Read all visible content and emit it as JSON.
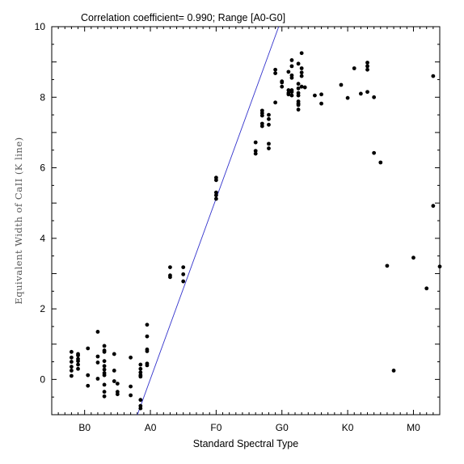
{
  "chart_data": {
    "type": "scatter",
    "title": "Correlation coefficient= 0.990; Range [A0-G0]",
    "xlabel": "Standard Spectral Type",
    "ylabel": "Equivalent Width of CaII (K line)",
    "xlim": [
      -5,
      54
    ],
    "ylim": [
      -1,
      10
    ],
    "x_ticks": [
      {
        "value": 0,
        "label": "B0"
      },
      {
        "value": 10,
        "label": "A0"
      },
      {
        "value": 20,
        "label": "F0"
      },
      {
        "value": 30,
        "label": "G0"
      },
      {
        "value": 40,
        "label": "K0"
      },
      {
        "value": 50,
        "label": "M0"
      }
    ],
    "y_ticks": [
      0,
      2,
      4,
      6,
      8,
      10
    ],
    "grid": false,
    "fit_line": {
      "slope": 0.512,
      "intercept": -5.11,
      "color": "#3333cc"
    },
    "points": [
      [
        -2,
        0.78
      ],
      [
        -2,
        0.62
      ],
      [
        -2,
        0.5
      ],
      [
        -2,
        0.36
      ],
      [
        -2,
        0.25
      ],
      [
        -2,
        0.1
      ],
      [
        -1,
        0.72
      ],
      [
        -1,
        0.68
      ],
      [
        -1,
        0.58
      ],
      [
        -1,
        0.52
      ],
      [
        -1,
        0.42
      ],
      [
        -1,
        0.3
      ],
      [
        0.5,
        0.88
      ],
      [
        0.5,
        0.12
      ],
      [
        0.5,
        -0.18
      ],
      [
        2,
        1.35
      ],
      [
        2,
        0.65
      ],
      [
        2,
        0.48
      ],
      [
        2,
        0.02
      ],
      [
        3,
        0.95
      ],
      [
        3,
        0.82
      ],
      [
        3,
        0.78
      ],
      [
        3,
        0.52
      ],
      [
        3,
        0.38
      ],
      [
        3,
        0.28
      ],
      [
        3,
        0.18
      ],
      [
        3,
        0.12
      ],
      [
        3,
        -0.15
      ],
      [
        3,
        -0.35
      ],
      [
        3,
        -0.48
      ],
      [
        4.5,
        0.72
      ],
      [
        4.5,
        0.25
      ],
      [
        4.5,
        -0.05
      ],
      [
        5,
        -0.12
      ],
      [
        5,
        -0.35
      ],
      [
        5,
        -0.42
      ],
      [
        7,
        0.62
      ],
      [
        7,
        -0.2
      ],
      [
        7,
        -0.45
      ],
      [
        8.5,
        0.42
      ],
      [
        8.5,
        0.3
      ],
      [
        8.5,
        0.2
      ],
      [
        8.5,
        0.12
      ],
      [
        8.5,
        0.08
      ],
      [
        8.5,
        -0.58
      ],
      [
        8.5,
        -0.75
      ],
      [
        8.5,
        -0.82
      ],
      [
        9.5,
        1.55
      ],
      [
        9.5,
        1.22
      ],
      [
        9.5,
        0.85
      ],
      [
        9.5,
        0.8
      ],
      [
        9.5,
        0.45
      ],
      [
        9.5,
        0.4
      ],
      [
        13,
        3.18
      ],
      [
        13,
        2.95
      ],
      [
        13,
        2.9
      ],
      [
        15,
        3.18
      ],
      [
        15,
        2.98
      ],
      [
        15,
        2.78
      ],
      [
        20,
        5.72
      ],
      [
        20,
        5.65
      ],
      [
        20,
        5.3
      ],
      [
        20,
        5.22
      ],
      [
        20,
        5.12
      ],
      [
        26,
        6.72
      ],
      [
        26,
        6.48
      ],
      [
        26,
        6.4
      ],
      [
        27,
        7.62
      ],
      [
        27,
        7.55
      ],
      [
        27,
        7.48
      ],
      [
        27,
        7.25
      ],
      [
        27,
        7.18
      ],
      [
        28,
        7.5
      ],
      [
        28,
        7.38
      ],
      [
        28,
        7.22
      ],
      [
        28,
        6.68
      ],
      [
        28,
        6.55
      ],
      [
        29,
        8.78
      ],
      [
        29,
        8.68
      ],
      [
        29,
        7.85
      ],
      [
        30,
        8.45
      ],
      [
        30,
        8.42
      ],
      [
        30,
        8.3
      ],
      [
        31,
        8.72
      ],
      [
        31,
        8.2
      ],
      [
        31,
        8.12
      ],
      [
        31,
        8.08
      ],
      [
        31.5,
        9.05
      ],
      [
        31.5,
        8.88
      ],
      [
        31.5,
        8.62
      ],
      [
        31.5,
        8.55
      ],
      [
        31.5,
        8.2
      ],
      [
        31.5,
        8.15
      ],
      [
        31.5,
        8.05
      ],
      [
        32.5,
        8.95
      ],
      [
        32.5,
        8.38
      ],
      [
        32.5,
        8.25
      ],
      [
        32.5,
        8.12
      ],
      [
        32.5,
        8.05
      ],
      [
        32.5,
        7.88
      ],
      [
        32.5,
        7.82
      ],
      [
        32.5,
        7.78
      ],
      [
        32.5,
        7.65
      ],
      [
        33,
        9.25
      ],
      [
        33,
        8.82
      ],
      [
        33,
        8.7
      ],
      [
        33,
        8.6
      ],
      [
        33,
        8.3
      ],
      [
        33.5,
        8.28
      ],
      [
        35,
        8.05
      ],
      [
        36,
        8.08
      ],
      [
        36,
        7.82
      ],
      [
        39,
        8.35
      ],
      [
        40,
        7.98
      ],
      [
        41,
        8.82
      ],
      [
        42,
        8.1
      ],
      [
        43,
        8.98
      ],
      [
        43,
        8.88
      ],
      [
        43,
        8.78
      ],
      [
        43,
        8.15
      ],
      [
        44,
        8.0
      ],
      [
        44,
        6.42
      ],
      [
        45,
        6.15
      ],
      [
        46,
        3.22
      ],
      [
        47,
        0.25
      ],
      [
        50,
        3.45
      ],
      [
        52,
        2.58
      ],
      [
        53,
        8.6
      ],
      [
        53,
        4.92
      ],
      [
        54,
        3.2
      ]
    ]
  }
}
